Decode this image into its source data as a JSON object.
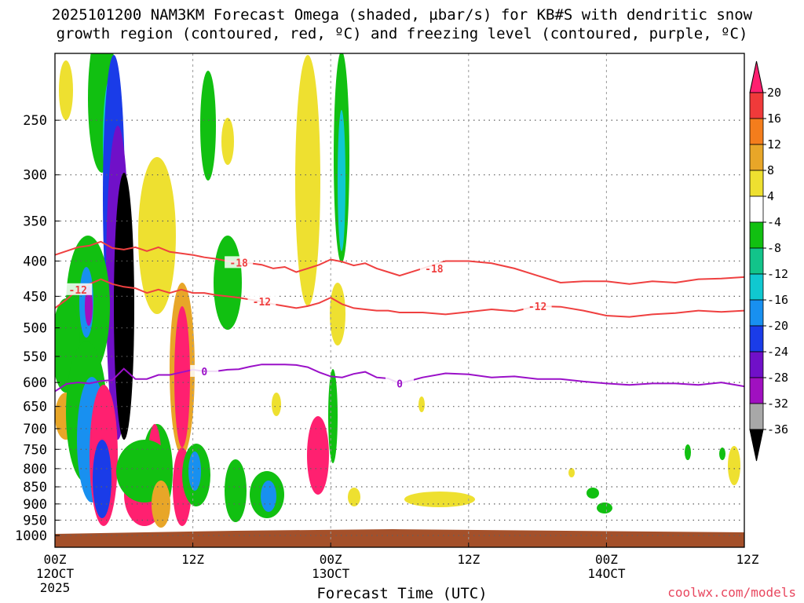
{
  "title_line1": "2025101200 NAM3KM Forecast Omega (shaded, µbar/s) for KB#S with dendritic snow",
  "title_line2": "growth region (contoured, red, ºC) and freezing level (contoured, purple, ºC)",
  "xlabel": "Forecast Time (UTC)",
  "credit": "coolwx.com/models",
  "colors": {
    "dgz": "#ef4040",
    "freezing": "#9a10c8",
    "terrain": "#a4502a",
    "grid": "#606060"
  },
  "colorbar": {
    "labels": [
      "20",
      "16",
      "12",
      "8",
      "4",
      "-4",
      "-8",
      "-12",
      "-16",
      "-20",
      "-24",
      "-28",
      "-32",
      "-36"
    ],
    "colors": [
      "#ff2070",
      "#f03a3a",
      "#f47d1c",
      "#e8a628",
      "#eee030",
      "#ffffff",
      "#11c011",
      "#12c48a",
      "#10c8d0",
      "#1890f0",
      "#1a3ce8",
      "#7010c8",
      "#a010c0",
      "#a8a8a8",
      "#000000"
    ]
  },
  "chart_data": {
    "type": "heatmap",
    "title": "2025101200 NAM3KM Forecast Omega (shaded, µbar/s) for KB#S with dendritic snow growth region (contoured, red, ºC) and freezing level (contoured, purple, ºC)",
    "xlabel": "Forecast Time (UTC)",
    "ylabel": "",
    "x_range_hours": [
      0,
      60
    ],
    "y_axis": "pressure (hPa), log scale, inverted",
    "ylim": [
      1040,
      200
    ],
    "grid": true,
    "x_ticks": [
      {
        "hour": 0,
        "label": [
          "00Z",
          "12OCT",
          "2025"
        ]
      },
      {
        "hour": 12,
        "label": [
          "12Z"
        ]
      },
      {
        "hour": 24,
        "label": [
          "00Z",
          "13OCT"
        ]
      },
      {
        "hour": 36,
        "label": [
          "12Z"
        ]
      },
      {
        "hour": 48,
        "label": [
          "00Z",
          "14OCT"
        ]
      },
      {
        "hour": 60,
        "label": [
          "12Z"
        ]
      }
    ],
    "y_ticks": [
      250,
      300,
      350,
      400,
      450,
      500,
      550,
      600,
      650,
      700,
      750,
      800,
      850,
      900,
      950,
      1000
    ],
    "contours": [
      {
        "name": "-18",
        "color": "#ef4040",
        "x": [
          0,
          1,
          2,
          3,
          4,
          5,
          6,
          7,
          8,
          9,
          10,
          11,
          12,
          13,
          14,
          15,
          16,
          17,
          18,
          19,
          20,
          21,
          22,
          23,
          24,
          25,
          26,
          27,
          28,
          29,
          30,
          32,
          34,
          36,
          38,
          40,
          42,
          44,
          46,
          48,
          50,
          52,
          54,
          56,
          58,
          60
        ],
        "y": [
          392,
          387,
          382,
          380,
          375,
          383,
          385,
          382,
          387,
          382,
          388,
          390,
          392,
          395,
          397,
          400,
          402,
          403,
          405,
          410,
          408,
          415,
          410,
          405,
          398,
          401,
          406,
          403,
          410,
          415,
          420,
          410,
          400,
          400,
          403,
          410,
          420,
          430,
          428,
          428,
          432,
          428,
          430,
          425,
          424,
          422
        ],
        "label_hours": [
          16,
          33
        ]
      },
      {
        "name": "-12",
        "color": "#ef4040",
        "x": [
          0,
          1,
          2,
          3,
          4,
          5,
          6,
          7,
          8,
          9,
          10,
          11,
          12,
          13,
          14,
          15,
          16,
          17,
          18,
          19,
          20,
          21,
          22,
          23,
          24,
          25,
          26,
          27,
          28,
          29,
          30,
          32,
          34,
          36,
          38,
          40,
          42,
          44,
          46,
          48,
          50,
          52,
          54,
          56,
          58,
          60
        ],
        "y": [
          468,
          455,
          440,
          432,
          425,
          432,
          436,
          438,
          445,
          440,
          445,
          440,
          445,
          445,
          448,
          450,
          452,
          455,
          458,
          462,
          465,
          468,
          465,
          460,
          452,
          462,
          468,
          470,
          472,
          472,
          475,
          475,
          478,
          474,
          470,
          473,
          465,
          466,
          472,
          480,
          482,
          478,
          476,
          472,
          474,
          472
        ],
        "label_hours": [
          2,
          18,
          42
        ]
      },
      {
        "name": "0",
        "color": "#9a10c8",
        "x": [
          0,
          1,
          2,
          3,
          4,
          5,
          6,
          7,
          8,
          9,
          10,
          11,
          12,
          13,
          14,
          15,
          16,
          17,
          18,
          19,
          20,
          21,
          22,
          23,
          24,
          25,
          26,
          27,
          28,
          29,
          30,
          32,
          34,
          36,
          38,
          40,
          42,
          44,
          46,
          48,
          50,
          52,
          54,
          56,
          58,
          60
        ],
        "y": [
          618,
          603,
          600,
          602,
          597,
          595,
          573,
          593,
          593,
          585,
          585,
          580,
          575,
          578,
          578,
          575,
          574,
          569,
          565,
          565,
          565,
          566,
          570,
          580,
          588,
          590,
          583,
          579,
          590,
          592,
          602,
          590,
          582,
          584,
          590,
          588,
          593,
          593,
          598,
          602,
          605,
          602,
          602,
          605,
          600,
          608
        ],
        "label_hours": [
          13,
          30
        ]
      }
    ]
  }
}
